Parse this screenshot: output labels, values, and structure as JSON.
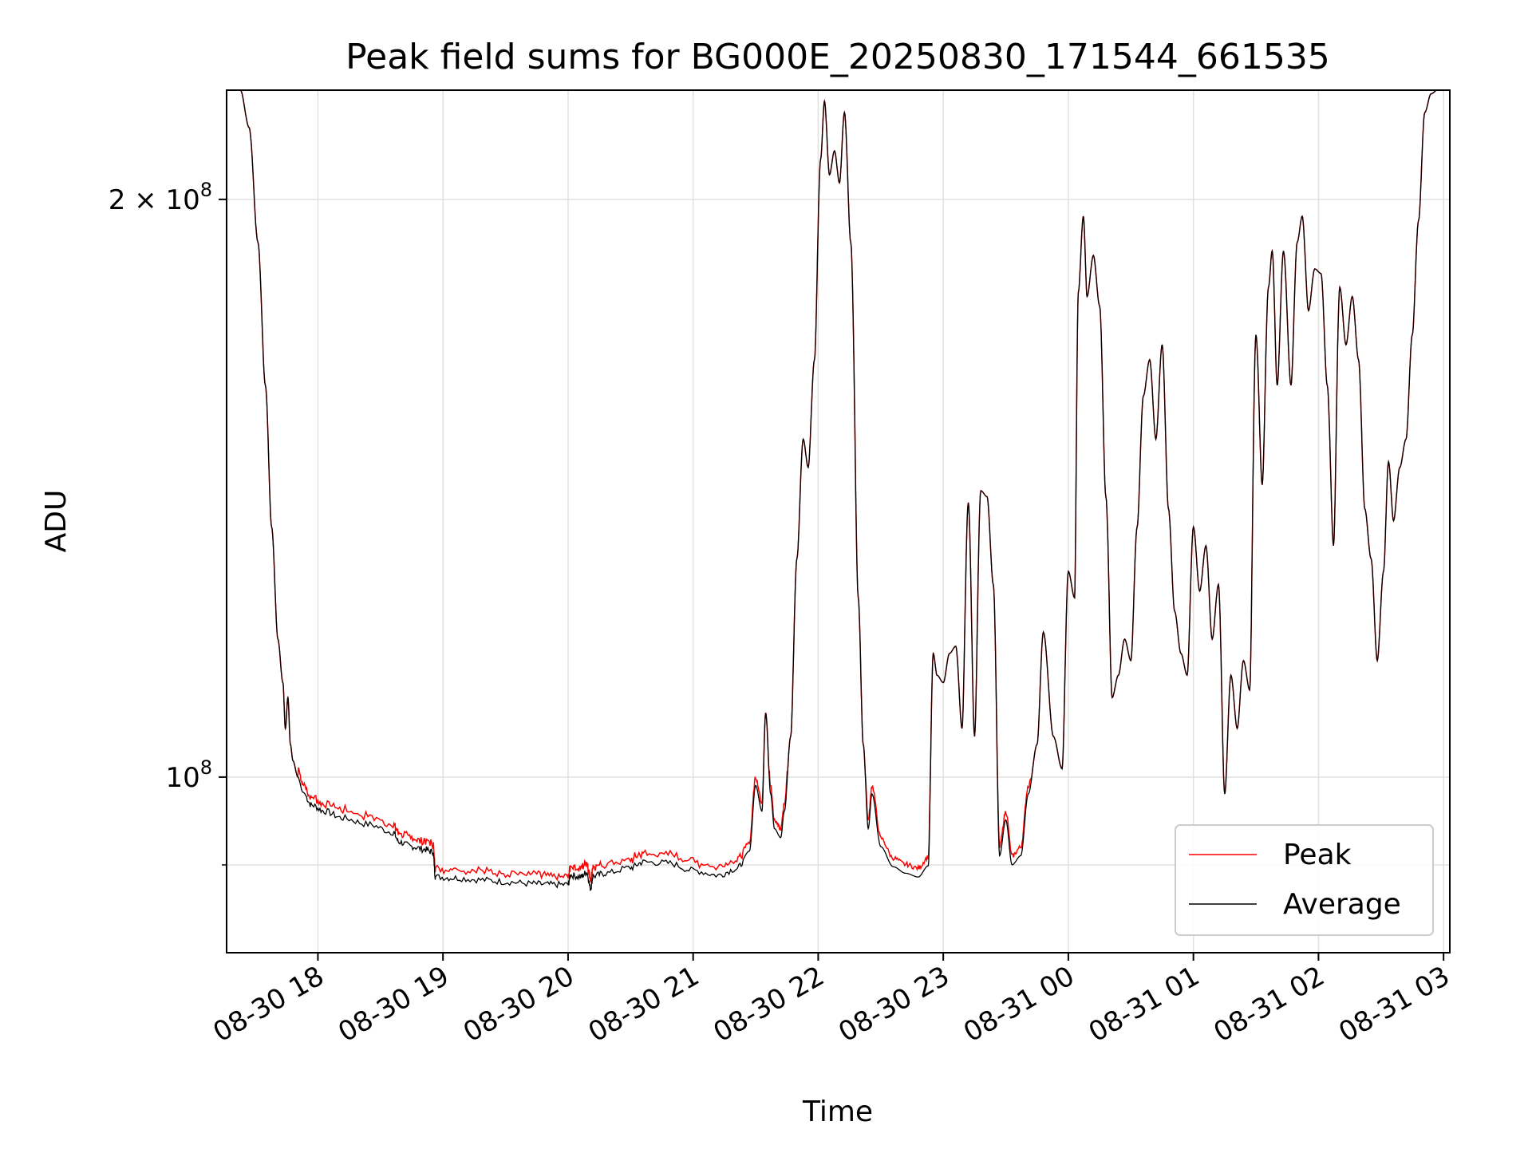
{
  "chart_data": {
    "type": "line",
    "title": "Peak field sums for BG000E_20250830_171544_661535",
    "xlabel": "Time",
    "ylabel": "ADU",
    "yscale": "log",
    "grid": true,
    "legend_position": "lower-right",
    "x_start_hours": 17.27,
    "x_end_hours": 27.05,
    "ylim": [
      81000000,
      228000000
    ],
    "x_ticks": [
      {
        "hours": 18,
        "label": "08-30 18"
      },
      {
        "hours": 19,
        "label": "08-30 19"
      },
      {
        "hours": 20,
        "label": "08-30 20"
      },
      {
        "hours": 21,
        "label": "08-30 21"
      },
      {
        "hours": 22,
        "label": "08-30 22"
      },
      {
        "hours": 23,
        "label": "08-30 23"
      },
      {
        "hours": 24,
        "label": "08-31 00"
      },
      {
        "hours": 25,
        "label": "08-31 01"
      },
      {
        "hours": 26,
        "label": "08-31 02"
      },
      {
        "hours": 27,
        "label": "08-31 03"
      }
    ],
    "y_major_ticks": [
      {
        "value": 100000000,
        "label_base": "10",
        "label_exp": "8"
      },
      {
        "value": 200000000,
        "label_base": "2 × 10",
        "label_exp": "8"
      }
    ],
    "y_minor_ticks": [
      90000000
    ],
    "series": [
      {
        "name": "Peak",
        "color": "#ff0000",
        "peak_offset": 700000,
        "peak_noise": 500000
      },
      {
        "name": "Average",
        "color": "#000000"
      }
    ],
    "average_points": [
      [
        17.38,
        228000000
      ],
      [
        17.45,
        218000000
      ],
      [
        17.52,
        190000000
      ],
      [
        17.58,
        160000000
      ],
      [
        17.63,
        135000000
      ],
      [
        17.68,
        118000000
      ],
      [
        17.72,
        112000000
      ],
      [
        17.74,
        106000000
      ],
      [
        17.76,
        110000000
      ],
      [
        17.78,
        104000000
      ],
      [
        17.8,
        102000000
      ],
      [
        17.84,
        100000000
      ],
      [
        17.88,
        98200000
      ],
      [
        17.95,
        96700000
      ],
      [
        18.05,
        96000000
      ],
      [
        18.2,
        95200000
      ],
      [
        18.4,
        94500000
      ],
      [
        18.6,
        93600000
      ],
      [
        18.65,
        92500000
      ],
      [
        18.75,
        92000000
      ],
      [
        18.85,
        91700000
      ],
      [
        18.92,
        91400000
      ],
      [
        18.94,
        88700000
      ],
      [
        19.1,
        88600000
      ],
      [
        19.3,
        88400000
      ],
      [
        19.5,
        88200000
      ],
      [
        19.7,
        88000000
      ],
      [
        19.85,
        87900000
      ],
      [
        20.0,
        87900000
      ],
      [
        20.02,
        88900000
      ],
      [
        20.1,
        88700000
      ],
      [
        20.15,
        89200000
      ],
      [
        20.18,
        87500000
      ],
      [
        20.2,
        88800000
      ],
      [
        20.3,
        89100000
      ],
      [
        20.5,
        89700000
      ],
      [
        20.6,
        90300000
      ],
      [
        20.8,
        90200000
      ],
      [
        21.0,
        89400000
      ],
      [
        21.2,
        88900000
      ],
      [
        21.35,
        89600000
      ],
      [
        21.45,
        91500000
      ],
      [
        21.5,
        99000000
      ],
      [
        21.55,
        96000000
      ],
      [
        21.58,
        108000000
      ],
      [
        21.62,
        98000000
      ],
      [
        21.65,
        94000000
      ],
      [
        21.7,
        93000000
      ],
      [
        21.73,
        96000000
      ],
      [
        21.78,
        105000000
      ],
      [
        21.83,
        130000000
      ],
      [
        21.88,
        150000000
      ],
      [
        21.92,
        145000000
      ],
      [
        21.97,
        165000000
      ],
      [
        22.02,
        210000000
      ],
      [
        22.05,
        225000000
      ],
      [
        22.09,
        206000000
      ],
      [
        22.13,
        212000000
      ],
      [
        22.17,
        204000000
      ],
      [
        22.21,
        222000000
      ],
      [
        22.26,
        190000000
      ],
      [
        22.32,
        124000000
      ],
      [
        22.36,
        104000000
      ],
      [
        22.4,
        94000000
      ],
      [
        22.43,
        98000000
      ],
      [
        22.5,
        92000000
      ],
      [
        22.6,
        89800000
      ],
      [
        22.7,
        89100000
      ],
      [
        22.8,
        88700000
      ],
      [
        22.88,
        89900000
      ],
      [
        22.92,
        116000000
      ],
      [
        22.95,
        113000000
      ],
      [
        23.0,
        112000000
      ],
      [
        23.05,
        116000000
      ],
      [
        23.1,
        117000000
      ],
      [
        23.15,
        106000000
      ],
      [
        23.2,
        139000000
      ],
      [
        23.25,
        105000000
      ],
      [
        23.3,
        141000000
      ],
      [
        23.35,
        140000000
      ],
      [
        23.4,
        126000000
      ],
      [
        23.45,
        91000000
      ],
      [
        23.5,
        95000000
      ],
      [
        23.55,
        90000000
      ],
      [
        23.62,
        91000000
      ],
      [
        23.68,
        98000000
      ],
      [
        23.75,
        104000000
      ],
      [
        23.8,
        119000000
      ],
      [
        23.88,
        105000000
      ],
      [
        23.95,
        101000000
      ],
      [
        24.0,
        128000000
      ],
      [
        24.05,
        124000000
      ],
      [
        24.08,
        179000000
      ],
      [
        24.12,
        196000000
      ],
      [
        24.15,
        178000000
      ],
      [
        24.2,
        187000000
      ],
      [
        24.25,
        176000000
      ],
      [
        24.3,
        140000000
      ],
      [
        24.35,
        110000000
      ],
      [
        24.4,
        113000000
      ],
      [
        24.45,
        118000000
      ],
      [
        24.5,
        115000000
      ],
      [
        24.55,
        135000000
      ],
      [
        24.6,
        158000000
      ],
      [
        24.65,
        165000000
      ],
      [
        24.7,
        150000000
      ],
      [
        24.75,
        168000000
      ],
      [
        24.8,
        138000000
      ],
      [
        24.85,
        122000000
      ],
      [
        24.9,
        116000000
      ],
      [
        24.95,
        113000000
      ],
      [
        25.0,
        135000000
      ],
      [
        25.05,
        125000000
      ],
      [
        25.1,
        132000000
      ],
      [
        25.15,
        118000000
      ],
      [
        25.2,
        126000000
      ],
      [
        25.25,
        98000000
      ],
      [
        25.3,
        113000000
      ],
      [
        25.35,
        106000000
      ],
      [
        25.4,
        115000000
      ],
      [
        25.45,
        111000000
      ],
      [
        25.5,
        170000000
      ],
      [
        25.55,
        142000000
      ],
      [
        25.6,
        180000000
      ],
      [
        25.63,
        188000000
      ],
      [
        25.67,
        160000000
      ],
      [
        25.72,
        188000000
      ],
      [
        25.78,
        160000000
      ],
      [
        25.83,
        190000000
      ],
      [
        25.87,
        196000000
      ],
      [
        25.92,
        175000000
      ],
      [
        25.97,
        184000000
      ],
      [
        26.02,
        183000000
      ],
      [
        26.07,
        160000000
      ],
      [
        26.12,
        132000000
      ],
      [
        26.17,
        180000000
      ],
      [
        26.22,
        168000000
      ],
      [
        26.27,
        178000000
      ],
      [
        26.32,
        165000000
      ],
      [
        26.37,
        138000000
      ],
      [
        26.42,
        130000000
      ],
      [
        26.47,
        115000000
      ],
      [
        26.52,
        128000000
      ],
      [
        26.56,
        146000000
      ],
      [
        26.6,
        136000000
      ],
      [
        26.65,
        145000000
      ],
      [
        26.7,
        150000000
      ],
      [
        26.75,
        170000000
      ],
      [
        26.8,
        195000000
      ],
      [
        26.85,
        222000000
      ],
      [
        26.9,
        227000000
      ],
      [
        26.95,
        228000000
      ],
      [
        27.04,
        228000000
      ]
    ]
  }
}
